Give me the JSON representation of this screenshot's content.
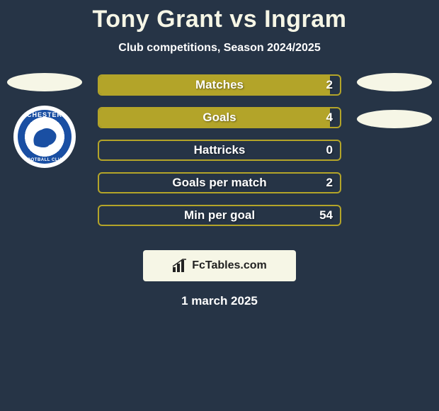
{
  "title": "Tony Grant vs Ingram",
  "subtitle": "Club competitions, Season 2024/2025",
  "date": "1 march 2025",
  "colors": {
    "background": "#263446",
    "bar_border": "#b3a429",
    "bar_fill": "#b3a429",
    "text_light": "#ffffff",
    "title_color": "#f6f6e6",
    "badge_bg": "#f6f6e6",
    "crest_blue": "#1a4fa3"
  },
  "left_badges": {
    "ellipses": 1,
    "crest": {
      "text_top": "CHESTER",
      "text_bottom": "FOOTBALL CLUB"
    }
  },
  "right_badges": {
    "ellipses": 2
  },
  "bars": [
    {
      "label": "Matches",
      "value": "2",
      "fill_pct": 96
    },
    {
      "label": "Goals",
      "value": "4",
      "fill_pct": 96
    },
    {
      "label": "Hattricks",
      "value": "0",
      "fill_pct": 0
    },
    {
      "label": "Goals per match",
      "value": "2",
      "fill_pct": 0
    },
    {
      "label": "Min per goal",
      "value": "54",
      "fill_pct": 0
    }
  ],
  "footer_brand": "FcTables.com"
}
